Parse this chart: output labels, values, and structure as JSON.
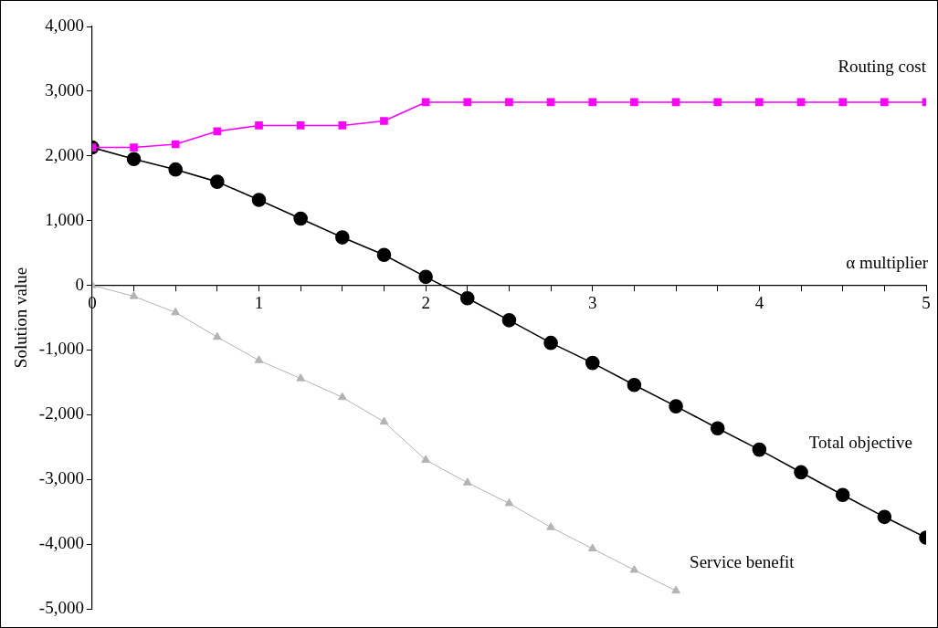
{
  "chart_data": {
    "type": "line",
    "xlabel": "α multiplier",
    "ylabel": "Solution value",
    "x": [
      0,
      0.25,
      0.5,
      0.75,
      1,
      1.25,
      1.5,
      1.75,
      2,
      2.25,
      2.5,
      2.75,
      3,
      3.25,
      3.5,
      3.75,
      4,
      4.25,
      4.5,
      4.75,
      5
    ],
    "series": [
      {
        "name": "Routing cost",
        "color": "#ff00ff",
        "marker": "square",
        "values": [
          2130,
          2130,
          2180,
          2380,
          2470,
          2470,
          2470,
          2540,
          2830,
          2830,
          2830,
          2830,
          2830,
          2830,
          2830,
          2830,
          2830,
          2830,
          2830,
          2830,
          2830
        ]
      },
      {
        "name": "Total objective",
        "color": "#000000",
        "marker": "circle",
        "values": [
          2130,
          1950,
          1790,
          1600,
          1320,
          1030,
          740,
          470,
          130,
          -200,
          -540,
          -890,
          -1200,
          -1540,
          -1870,
          -2210,
          -2540,
          -2890,
          -3240,
          -3580,
          -3900
        ]
      },
      {
        "name": "Service benefit",
        "color": "#b3b3b3",
        "marker": "triangle",
        "values": [
          0,
          -170,
          -420,
          -800,
          -1160,
          -1440,
          -1730,
          -2110,
          -2700,
          -3050,
          -3370,
          -3740,
          -4070,
          -4400,
          -4720,
          null,
          null,
          null,
          null,
          null,
          null
        ]
      }
    ],
    "xlim": [
      0,
      5
    ],
    "xticks": [
      {
        "value": 0,
        "label": "0"
      },
      {
        "value": 0.25,
        "label": null
      },
      {
        "value": 0.5,
        "label": null
      },
      {
        "value": 0.75,
        "label": null
      },
      {
        "value": 1,
        "label": "1"
      },
      {
        "value": 1.25,
        "label": null
      },
      {
        "value": 1.5,
        "label": null
      },
      {
        "value": 1.75,
        "label": null
      },
      {
        "value": 2,
        "label": "2"
      },
      {
        "value": 2.25,
        "label": null
      },
      {
        "value": 2.5,
        "label": null
      },
      {
        "value": 2.75,
        "label": null
      },
      {
        "value": 3,
        "label": "3"
      },
      {
        "value": 3.25,
        "label": null
      },
      {
        "value": 3.5,
        "label": null
      },
      {
        "value": 3.75,
        "label": null
      },
      {
        "value": 4,
        "label": "4"
      },
      {
        "value": 4.25,
        "label": null
      },
      {
        "value": 4.5,
        "label": null
      },
      {
        "value": 4.75,
        "label": null
      },
      {
        "value": 5,
        "label": "5"
      }
    ],
    "ylim": [
      -5000,
      4000
    ],
    "yticks": [
      {
        "value": -5000,
        "label": "-5,000"
      },
      {
        "value": -4000,
        "label": "-4,000"
      },
      {
        "value": -3000,
        "label": "-3,000"
      },
      {
        "value": -2000,
        "label": "-2,000"
      },
      {
        "value": -1000,
        "label": "-1,000"
      },
      {
        "value": 0,
        "label": "0"
      },
      {
        "value": 1000,
        "label": "1,000"
      },
      {
        "value": 2000,
        "label": "2,000"
      },
      {
        "value": 3000,
        "label": "3,000"
      },
      {
        "value": 4000,
        "label": "4,000"
      }
    ],
    "grid": false,
    "legend": false,
    "line_style": "solid"
  }
}
